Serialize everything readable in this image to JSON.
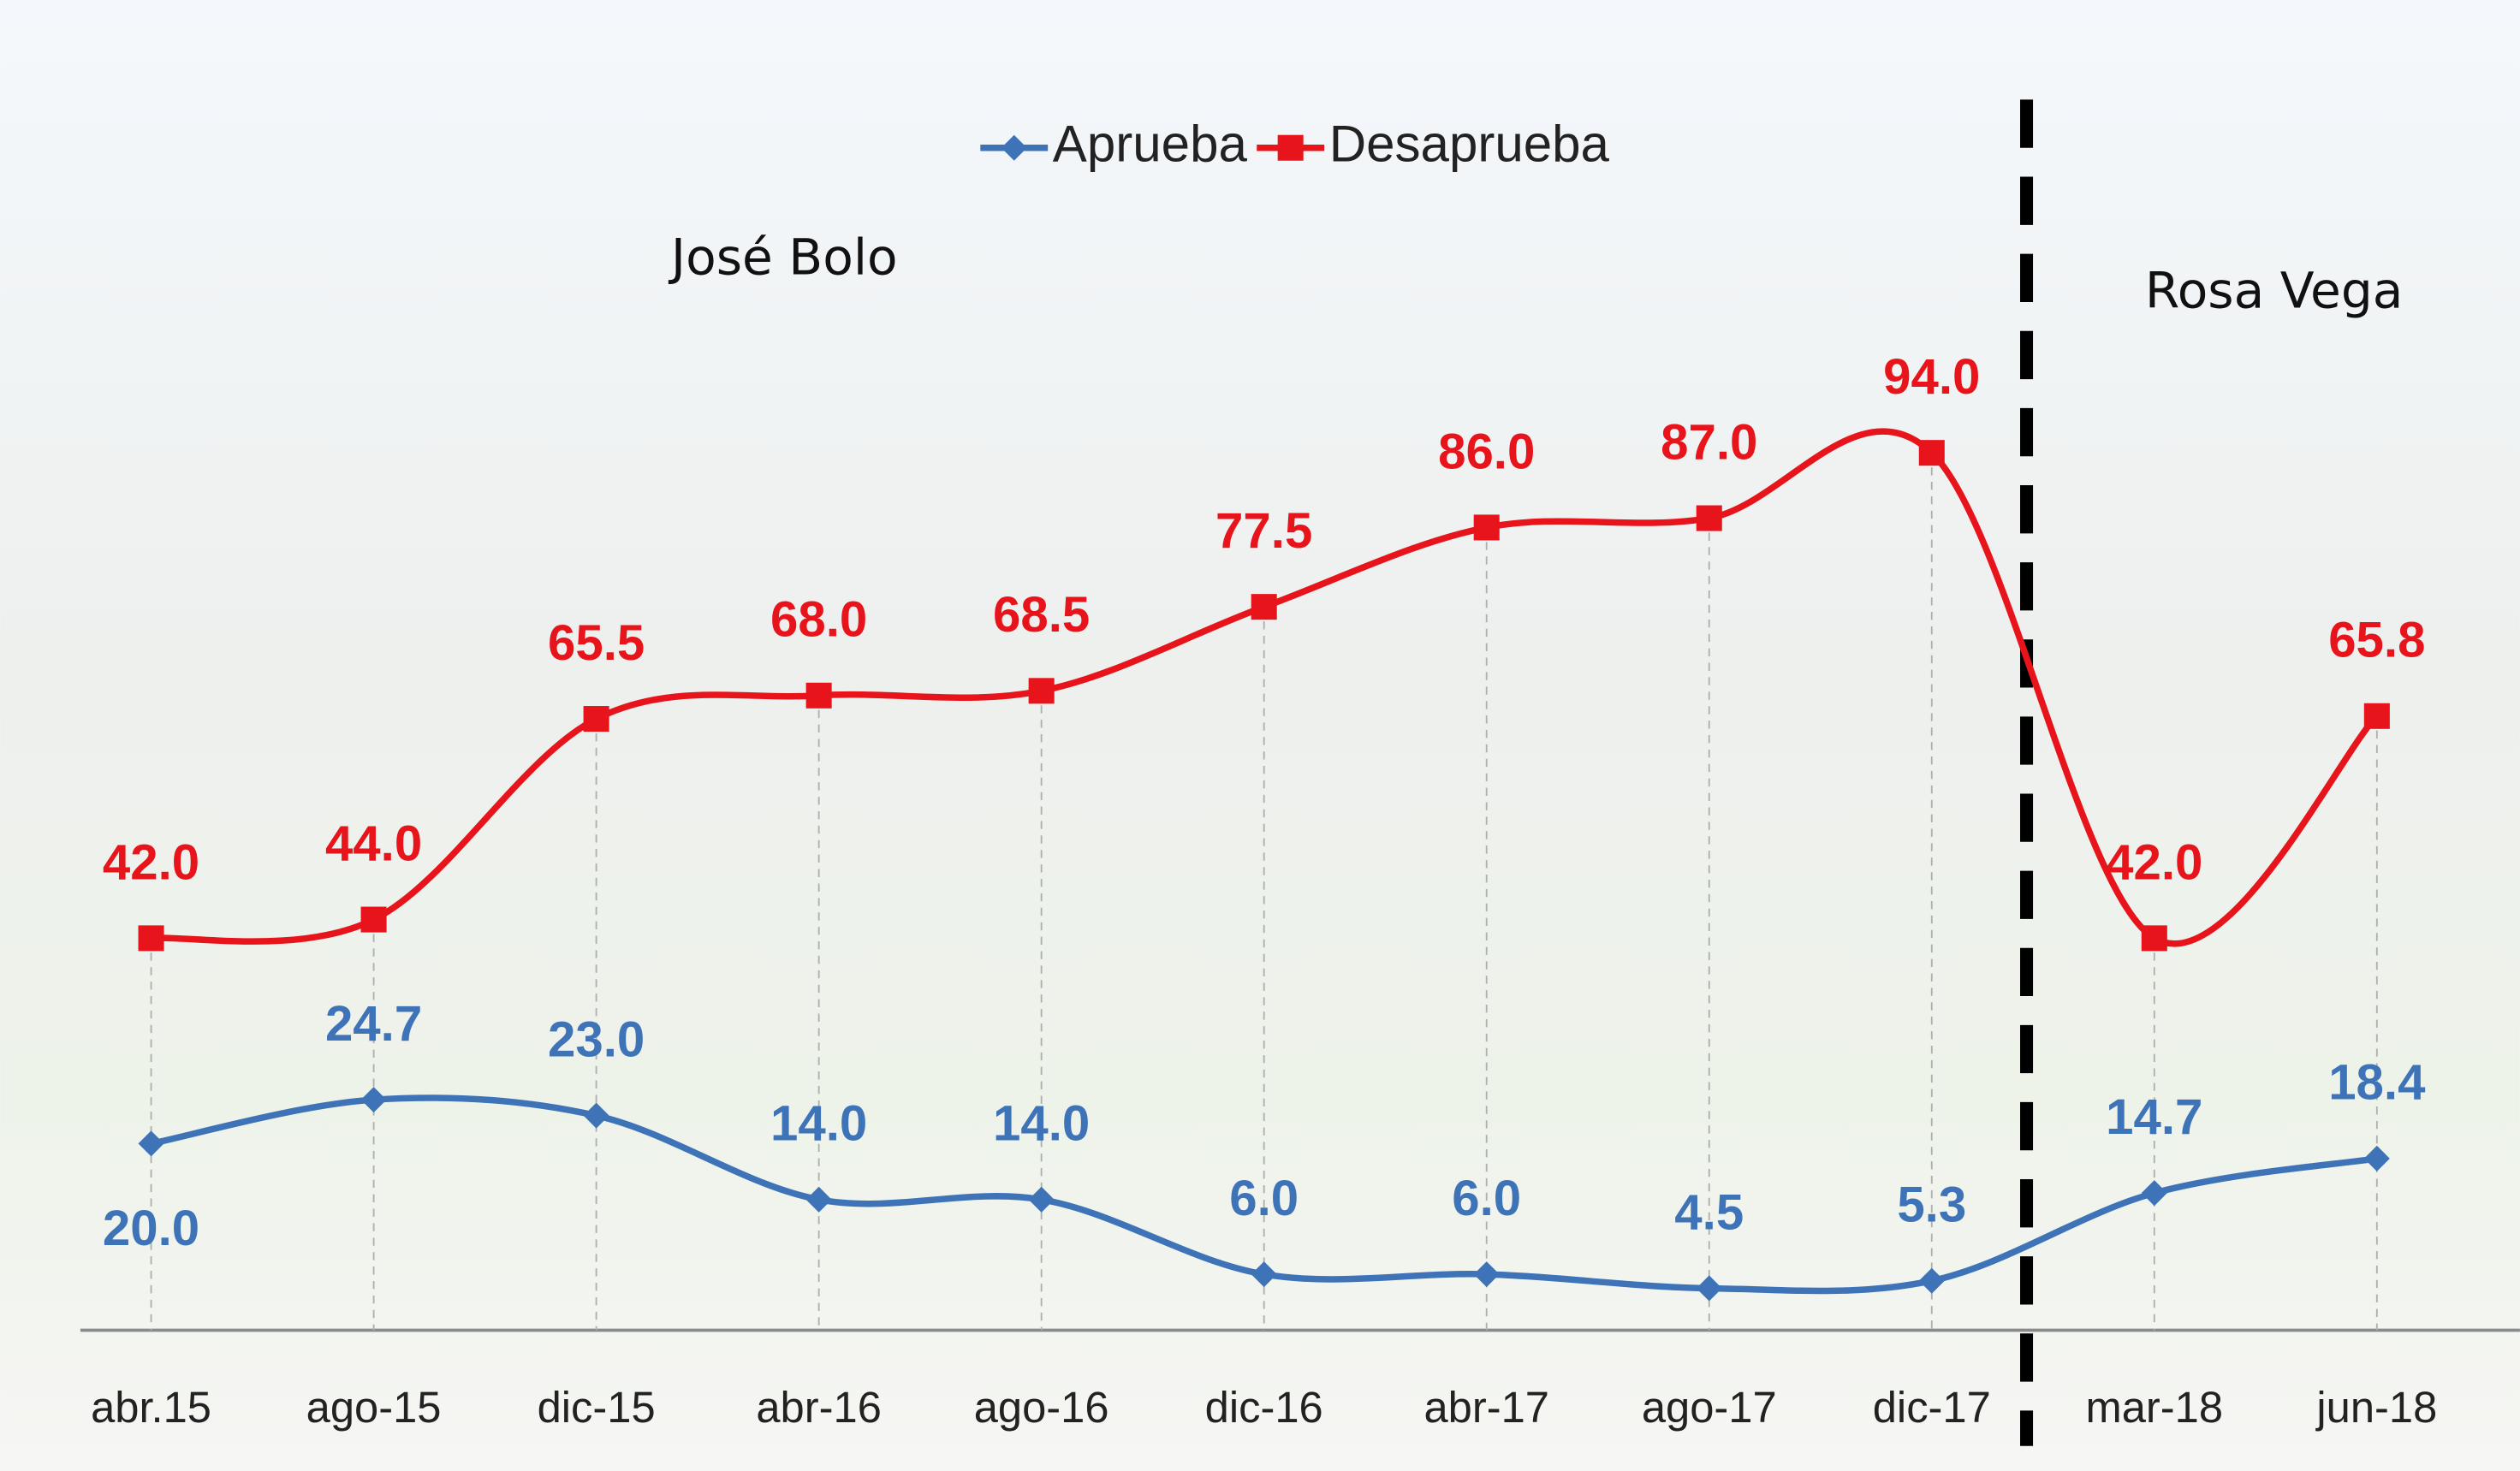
{
  "chart_data": {
    "type": "line",
    "categories": [
      "abr.15",
      "ago-15",
      "dic-15",
      "abr-16",
      "ago-16",
      "dic-16",
      "abr-17",
      "ago-17",
      "dic-17",
      "mar-18",
      "jun-18"
    ],
    "series": [
      {
        "name": "Aprueba",
        "color": "#3f73b8",
        "marker": "diamond",
        "values": [
          20.0,
          24.7,
          23.0,
          14.0,
          14.0,
          6.0,
          6.0,
          4.5,
          5.3,
          14.7,
          18.4
        ],
        "value_labels": [
          "20.0",
          "24.7",
          "23.0",
          "14.0",
          "14.0",
          "6.0",
          "6.0",
          "4.5",
          "5.3",
          "14.7",
          "18.4"
        ]
      },
      {
        "name": "Desaprueba",
        "color": "#e8141b",
        "marker": "square",
        "values": [
          42.0,
          44.0,
          65.5,
          68.0,
          68.5,
          77.5,
          86.0,
          87.0,
          94.0,
          42.0,
          65.8
        ],
        "value_labels": [
          "42.0",
          "44.0",
          "65.5",
          "68.0",
          "68.5",
          "77.5",
          "86.0",
          "87.0",
          "94.0",
          "42.0",
          "65.8"
        ]
      }
    ],
    "ylim": [
      0,
      100
    ],
    "annotations": [
      "José Bolo",
      "Rosa Vega"
    ]
  }
}
